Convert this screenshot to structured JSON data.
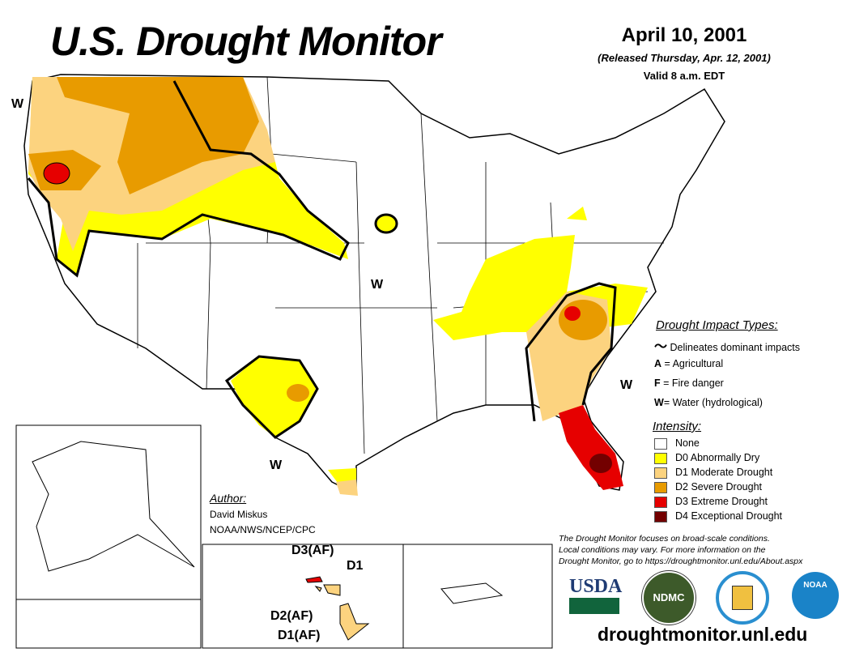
{
  "header": {
    "title": "U.S. Drought Monitor",
    "date": "April 10, 2001",
    "released": "(Released Thursday, Apr. 12, 2001)",
    "valid": "Valid 8 a.m. EDT"
  },
  "impact_types": {
    "heading": "Drought Impact Types:",
    "delineates": "Delineates dominant impacts",
    "items": [
      {
        "key": "A",
        "label": " = Agricultural"
      },
      {
        "key": "F",
        "label": " = Fire danger"
      },
      {
        "key": "W",
        "label": "= Water (hydrological)"
      }
    ]
  },
  "intensity": {
    "heading": "Intensity:",
    "items": [
      {
        "label": "None",
        "color": "#FFFFFF"
      },
      {
        "label": "D0 Abnormally Dry",
        "color": "#FFFF00"
      },
      {
        "label": "D1 Moderate Drought",
        "color": "#FCD37F"
      },
      {
        "label": "D2 Severe Drought",
        "color": "#E89B00"
      },
      {
        "label": "D3 Extreme Drought",
        "color": "#E60000"
      },
      {
        "label": "D4 Exceptional Drought",
        "color": "#730000"
      }
    ]
  },
  "author": {
    "heading": "Author:",
    "name": "David Miskus",
    "org": "NOAA/NWS/NCEP/CPC"
  },
  "map_labels": {
    "w": "W",
    "hawaii": [
      "D3(AF)",
      "D1",
      "D2(AF)",
      "D1(AF)"
    ]
  },
  "note": [
    "The Drought Monitor focuses on broad-scale conditions.",
    "Local conditions may vary. For more information on the",
    "Drought Monitor, go to https://droughtmonitor.unl.edu/About.aspx"
  ],
  "logos": {
    "usda": "USDA",
    "ndmc": "NDMC",
    "noaa": "NOAA"
  },
  "url": "droughtmonitor.unl.edu"
}
